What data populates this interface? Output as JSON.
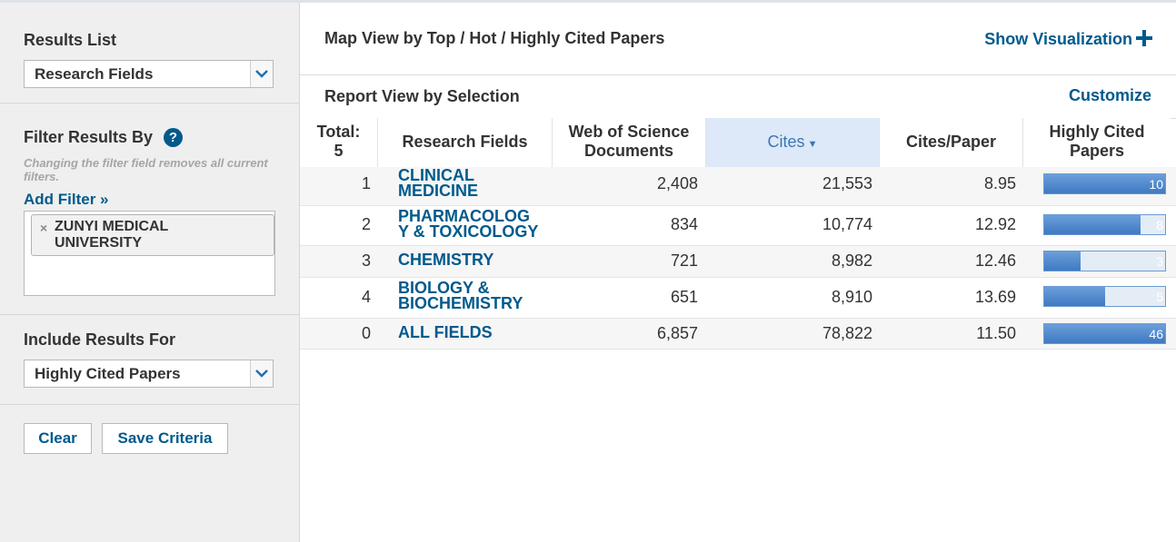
{
  "sidebar": {
    "results_list_title": "Results List",
    "results_list_value": "Research Fields",
    "filter_title": "Filter Results By",
    "help_glyph": "?",
    "filter_note": "Changing the filter field removes all current filters.",
    "add_filter": "Add Filter »",
    "filters": [
      {
        "label": "ZUNYI MEDICAL UNIVERSITY",
        "remove_glyph": "×"
      }
    ],
    "include_title": "Include Results For",
    "include_value": "Highly Cited Papers",
    "clear_label": "Clear",
    "save_label": "Save Criteria"
  },
  "main": {
    "map_view_title": "Map View by Top / Hot / Highly Cited Papers",
    "show_visualization": "Show Visualization",
    "report_view_title": "Report View by Selection",
    "customize": "Customize"
  },
  "table": {
    "headers": {
      "total_line1": "Total:",
      "total_line2": "5",
      "field": "Research Fields",
      "docs_line1": "Web of Science",
      "docs_line2": "Documents",
      "cites": "Cites",
      "cites_paper": "Cites/Paper",
      "hcp_line1": "Highly Cited",
      "hcp_line2": "Papers"
    },
    "rows": [
      {
        "rank": "1",
        "field_line1": "CLINICAL",
        "field_line2": "MEDICINE",
        "docs": "2,408",
        "cites": "21,553",
        "cpp": "8.95",
        "hcp_label": "10",
        "hcp_fraction": 1.0
      },
      {
        "rank": "2",
        "field_line1": "PHARMACOLOG",
        "field_line2": "Y & TOXICOLOGY",
        "docs": "834",
        "cites": "10,774",
        "cpp": "12.92",
        "hcp_label": "8",
        "hcp_fraction": 0.8
      },
      {
        "rank": "3",
        "field_line1": "CHEMISTRY",
        "field_line2": "",
        "docs": "721",
        "cites": "8,982",
        "cpp": "12.46",
        "hcp_label": "3",
        "hcp_fraction": 0.3
      },
      {
        "rank": "4",
        "field_line1": "BIOLOGY &",
        "field_line2": "BIOCHEMISTRY",
        "docs": "651",
        "cites": "8,910",
        "cpp": "13.69",
        "hcp_label": "5",
        "hcp_fraction": 0.5
      },
      {
        "rank": "0",
        "field_line1": "ALL FIELDS",
        "field_line2": "",
        "docs": "6,857",
        "cites": "78,822",
        "cpp": "11.50",
        "hcp_label": "46",
        "hcp_fraction": 1.0
      }
    ]
  },
  "colors": {
    "link": "#005a8c",
    "sorted_header_bg": "#dde9f8",
    "bar_fill": "#4a86d1"
  }
}
